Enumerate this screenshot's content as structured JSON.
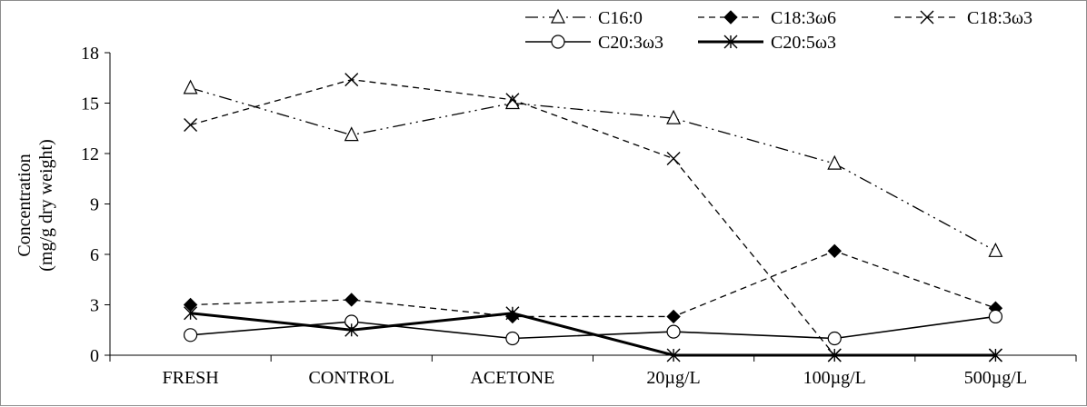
{
  "chart_data": {
    "type": "line",
    "title": "",
    "xlabel": "",
    "ylabel": [
      "Concentration",
      "(mg/g dry weight)"
    ],
    "categories": [
      "FRESH",
      "CONTROL",
      "ACETONE",
      "20µg/L",
      "100µg/L",
      "500µg/L"
    ],
    "ylim": [
      0,
      18
    ],
    "yticks": [
      0,
      3,
      6,
      9,
      12,
      15,
      18
    ],
    "grid": false,
    "legend_placement": "top-right",
    "series": [
      {
        "name": "C16:0",
        "marker": "triangle-open",
        "line_style": "dash-dot-dot",
        "color": "#000000",
        "values": [
          15.9,
          13.1,
          15.0,
          14.1,
          11.4,
          6.2
        ]
      },
      {
        "name": "C18:3ω6",
        "marker": "diamond-filled",
        "line_style": "dashed",
        "color": "#000000",
        "values": [
          3.0,
          3.3,
          2.3,
          2.3,
          6.2,
          2.8
        ]
      },
      {
        "name": "C18:3ω3",
        "marker": "x",
        "line_style": "dashed",
        "color": "#000000",
        "values": [
          13.7,
          16.4,
          15.2,
          11.7,
          0.0,
          0.0
        ]
      },
      {
        "name": "C20:3ω3",
        "marker": "circle-open",
        "line_style": "solid",
        "color": "#000000",
        "values": [
          1.2,
          2.0,
          1.0,
          1.4,
          1.0,
          2.3
        ]
      },
      {
        "name": "C20:5ω3",
        "marker": "asterisk",
        "line_style": "solid-thick",
        "color": "#000000",
        "values": [
          2.5,
          1.5,
          2.5,
          0.0,
          0.0,
          0.0
        ]
      }
    ]
  }
}
